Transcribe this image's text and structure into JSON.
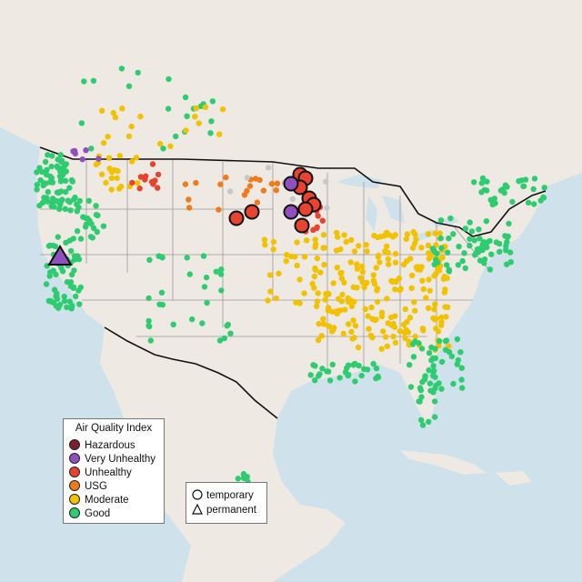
{
  "legend": {
    "title": "Air Quality Index",
    "categories": [
      {
        "label": "Hazardous",
        "color": "#7e1d2b"
      },
      {
        "label": "Very Unhealthy",
        "color": "#8f4fbf"
      },
      {
        "label": "Unhealthy",
        "color": "#e8432f"
      },
      {
        "label": "USG",
        "color": "#f07b1b"
      },
      {
        "label": "Moderate",
        "color": "#f2c200"
      },
      {
        "label": "Good",
        "color": "#2ecc71"
      }
    ]
  },
  "monitor_types": [
    {
      "label": "temporary",
      "shape": "circle"
    },
    {
      "label": "permanent",
      "shape": "triangle"
    }
  ],
  "colors": {
    "ocean": "#cfe1ea",
    "land": "#efe9e4",
    "border": "#111111",
    "state_lines": "#9a9a9a"
  }
}
